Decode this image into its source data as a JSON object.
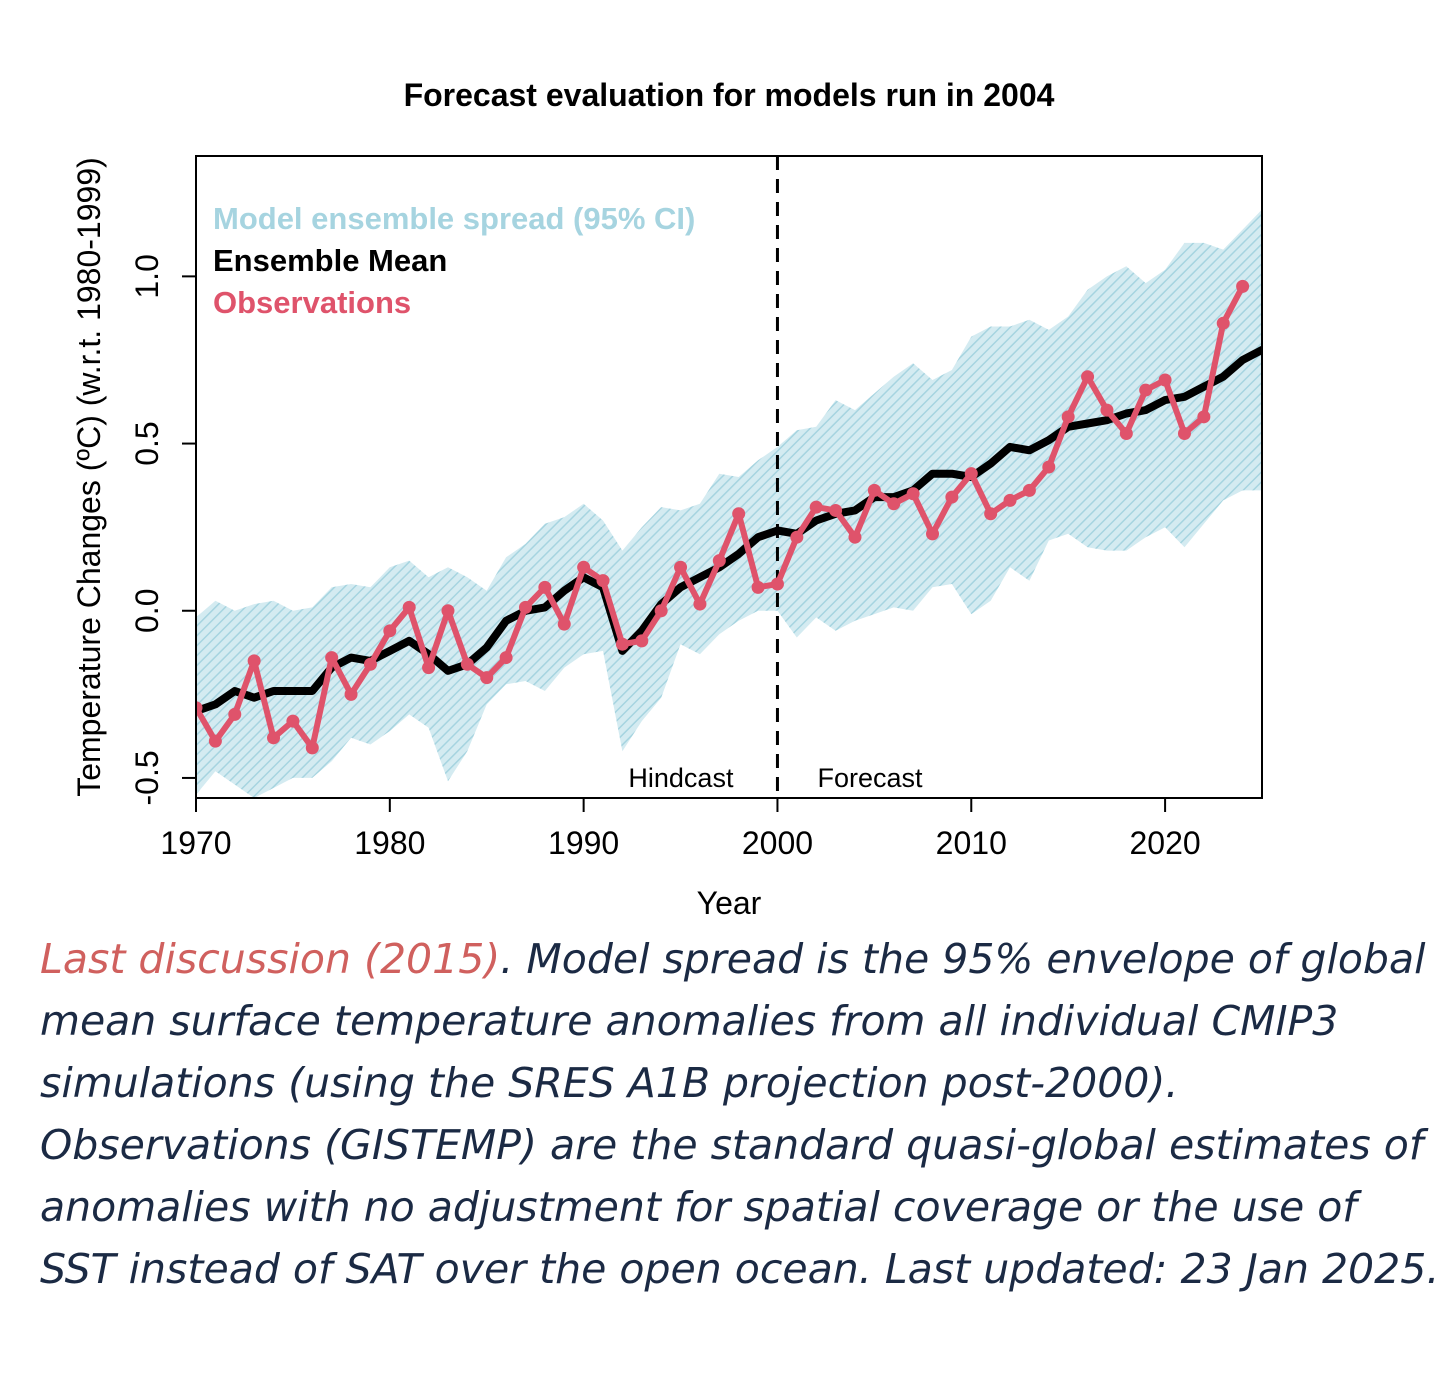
{
  "chart_data": {
    "type": "line",
    "title": "Forecast evaluation for models run in 2004",
    "xlabel": "Year",
    "ylabel": "Temperature Changes (ºC) (w.r.t. 1980-1999)",
    "xlim": [
      1970,
      2025
    ],
    "ylim": [
      -0.56,
      1.36
    ],
    "x_ticks": [
      1970,
      1980,
      1990,
      2000,
      2010,
      2020
    ],
    "y_ticks": [
      -0.5,
      0.0,
      0.5,
      1.0
    ],
    "y_tick_labels": [
      "-0.5",
      "0.0",
      "0.5",
      "1.0"
    ],
    "grid": false,
    "legend_position": "top-left",
    "legend": [
      {
        "label": "Model ensemble spread (95% CI)",
        "color": "#a6d4e0"
      },
      {
        "label": "Ensemble Mean",
        "color": "#000000"
      },
      {
        "label": "Observations",
        "color": "#df536b"
      }
    ],
    "divider": {
      "x": 2000,
      "left_label": "Hindcast",
      "right_label": "Forecast"
    },
    "series": [
      {
        "name": "Model ensemble spread (95% CI)",
        "kind": "band",
        "color": "#a6d4e0",
        "x": [
          1970,
          1971,
          1972,
          1973,
          1974,
          1975,
          1976,
          1977,
          1978,
          1979,
          1980,
          1981,
          1982,
          1983,
          1984,
          1985,
          1986,
          1987,
          1988,
          1989,
          1990,
          1991,
          1992,
          1993,
          1994,
          1995,
          1996,
          1997,
          1998,
          1999,
          2000,
          2001,
          2002,
          2003,
          2004,
          2005,
          2006,
          2007,
          2008,
          2009,
          2010,
          2011,
          2012,
          2013,
          2014,
          2015,
          2016,
          2017,
          2018,
          2019,
          2020,
          2021,
          2022,
          2023,
          2024,
          2025
        ],
        "upper": [
          -0.02,
          0.03,
          0.0,
          0.02,
          0.03,
          0.0,
          0.01,
          0.07,
          0.08,
          0.07,
          0.13,
          0.15,
          0.1,
          0.13,
          0.1,
          0.06,
          0.16,
          0.2,
          0.26,
          0.28,
          0.32,
          0.27,
          0.18,
          0.25,
          0.31,
          0.3,
          0.32,
          0.41,
          0.4,
          0.45,
          0.49,
          0.54,
          0.55,
          0.63,
          0.6,
          0.65,
          0.7,
          0.74,
          0.69,
          0.72,
          0.82,
          0.85,
          0.85,
          0.87,
          0.84,
          0.88,
          0.96,
          1.0,
          1.03,
          0.98,
          1.02,
          1.1,
          1.1,
          1.08,
          1.14,
          1.2
        ],
        "lower": [
          -0.55,
          -0.48,
          -0.52,
          -0.56,
          -0.53,
          -0.5,
          -0.5,
          -0.45,
          -0.38,
          -0.4,
          -0.36,
          -0.31,
          -0.35,
          -0.51,
          -0.42,
          -0.28,
          -0.22,
          -0.21,
          -0.24,
          -0.17,
          -0.13,
          -0.12,
          -0.42,
          -0.33,
          -0.26,
          -0.1,
          -0.13,
          -0.07,
          -0.03,
          0.0,
          0.0,
          -0.08,
          -0.02,
          -0.06,
          -0.03,
          -0.01,
          0.01,
          0.0,
          0.07,
          0.08,
          -0.01,
          0.03,
          0.13,
          0.09,
          0.21,
          0.23,
          0.19,
          0.18,
          0.18,
          0.22,
          0.25,
          0.19,
          0.26,
          0.33,
          0.36,
          0.36
        ]
      },
      {
        "name": "Ensemble Mean",
        "kind": "line",
        "color": "#000000",
        "x": [
          1970,
          1971,
          1972,
          1973,
          1974,
          1975,
          1976,
          1977,
          1978,
          1979,
          1980,
          1981,
          1982,
          1983,
          1984,
          1985,
          1986,
          1987,
          1988,
          1989,
          1990,
          1991,
          1992,
          1993,
          1994,
          1995,
          1996,
          1997,
          1998,
          1999,
          2000,
          2001,
          2002,
          2003,
          2004,
          2005,
          2006,
          2007,
          2008,
          2009,
          2010,
          2011,
          2012,
          2013,
          2014,
          2015,
          2016,
          2017,
          2018,
          2019,
          2020,
          2021,
          2022,
          2023,
          2024,
          2025
        ],
        "values": [
          -0.3,
          -0.28,
          -0.24,
          -0.26,
          -0.24,
          -0.24,
          -0.24,
          -0.17,
          -0.14,
          -0.15,
          -0.12,
          -0.09,
          -0.13,
          -0.18,
          -0.16,
          -0.11,
          -0.03,
          0.0,
          0.01,
          0.06,
          0.1,
          0.07,
          -0.12,
          -0.06,
          0.02,
          0.07,
          0.1,
          0.13,
          0.17,
          0.22,
          0.24,
          0.23,
          0.27,
          0.29,
          0.3,
          0.34,
          0.34,
          0.36,
          0.41,
          0.41,
          0.4,
          0.44,
          0.49,
          0.48,
          0.51,
          0.55,
          0.56,
          0.57,
          0.59,
          0.6,
          0.63,
          0.64,
          0.67,
          0.7,
          0.75,
          0.78
        ]
      },
      {
        "name": "Observations",
        "kind": "line-points",
        "color": "#df536b",
        "x": [
          1970,
          1971,
          1972,
          1973,
          1974,
          1975,
          1976,
          1977,
          1978,
          1979,
          1980,
          1981,
          1982,
          1983,
          1984,
          1985,
          1986,
          1987,
          1988,
          1989,
          1990,
          1991,
          1992,
          1993,
          1994,
          1995,
          1996,
          1997,
          1998,
          1999,
          2000,
          2001,
          2002,
          2003,
          2004,
          2005,
          2006,
          2007,
          2008,
          2009,
          2010,
          2011,
          2012,
          2013,
          2014,
          2015,
          2016,
          2017,
          2018,
          2019,
          2020,
          2021,
          2022,
          2023,
          2024
        ],
        "values": [
          -0.29,
          -0.39,
          -0.31,
          -0.15,
          -0.38,
          -0.33,
          -0.41,
          -0.14,
          -0.25,
          -0.16,
          -0.06,
          0.01,
          -0.17,
          0.0,
          -0.16,
          -0.2,
          -0.14,
          0.01,
          0.07,
          -0.04,
          0.13,
          0.09,
          -0.1,
          -0.09,
          0.0,
          0.13,
          0.02,
          0.15,
          0.29,
          0.07,
          0.08,
          0.22,
          0.31,
          0.3,
          0.22,
          0.36,
          0.32,
          0.35,
          0.23,
          0.34,
          0.41,
          0.29,
          0.33,
          0.36,
          0.43,
          0.58,
          0.7,
          0.6,
          0.53,
          0.66,
          0.69,
          0.53,
          0.58,
          0.86,
          0.97
        ]
      }
    ]
  },
  "caption": {
    "link_text": "Last discussion (2015)",
    "body": ". Model spread is the 95% envelope of global mean surface temperature anomalies from all individual CMIP3 simulations (using the SRES A1B projection post-2000). Observations (GISTEMP) are the standard quasi-global estimates of anomalies with no adjustment for spatial coverage or the use of SST instead of SAT over the open ocean. Last updated: 23 Jan 2025."
  }
}
